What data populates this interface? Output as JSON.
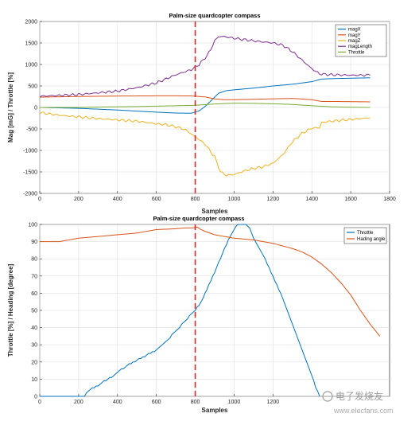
{
  "chart_data": [
    {
      "type": "line",
      "title": "Palm-size quardcopter compass",
      "xlabel": "Samples",
      "ylabel": "Mag [mG] / Throttle [%]",
      "xlim": [
        0,
        1800
      ],
      "ylim": [
        -2000,
        2000
      ],
      "xticks": [
        0,
        200,
        400,
        600,
        800,
        1000,
        1200,
        1400,
        1600,
        1800
      ],
      "yticks": [
        -2000,
        -1500,
        -1000,
        -500,
        0,
        500,
        1000,
        1500,
        2000
      ],
      "grid": true,
      "legend_position": "top-right",
      "vline": {
        "x": 800,
        "color": "#d62728",
        "style": "dashed"
      },
      "series": [
        {
          "name": "magX",
          "color": "#0072bd",
          "points": [
            [
              0,
              0
            ],
            [
              200,
              -20
            ],
            [
              400,
              -60
            ],
            [
              600,
              -110
            ],
            [
              700,
              -130
            ],
            [
              780,
              -135
            ],
            [
              820,
              -80
            ],
            [
              850,
              20
            ],
            [
              880,
              150
            ],
            [
              920,
              330
            ],
            [
              960,
              390
            ],
            [
              1000,
              410
            ],
            [
              1100,
              450
            ],
            [
              1200,
              500
            ],
            [
              1300,
              540
            ],
            [
              1400,
              600
            ],
            [
              1450,
              660
            ],
            [
              1500,
              670
            ],
            [
              1600,
              680
            ],
            [
              1700,
              690
            ]
          ]
        },
        {
          "name": "magY",
          "color": "#d95319",
          "points": [
            [
              0,
              240
            ],
            [
              200,
              255
            ],
            [
              400,
              265
            ],
            [
              600,
              270
            ],
            [
              700,
              270
            ],
            [
              780,
              268
            ],
            [
              850,
              245
            ],
            [
              900,
              200
            ],
            [
              950,
              180
            ],
            [
              1000,
              180
            ],
            [
              1100,
              190
            ],
            [
              1200,
              200
            ],
            [
              1300,
              210
            ],
            [
              1400,
              180
            ],
            [
              1450,
              140
            ],
            [
              1500,
              140
            ],
            [
              1600,
              135
            ],
            [
              1700,
              130
            ]
          ]
        },
        {
          "name": "magZ",
          "color": "#edb120",
          "points": [
            [
              0,
              -120
            ],
            [
              100,
              -180
            ],
            [
              200,
              -220
            ],
            [
              300,
              -260
            ],
            [
              400,
              -290
            ],
            [
              500,
              -320
            ],
            [
              600,
              -380
            ],
            [
              650,
              -400
            ],
            [
              700,
              -450
            ],
            [
              750,
              -520
            ],
            [
              800,
              -680
            ],
            [
              850,
              -850
            ],
            [
              900,
              -1150
            ],
            [
              930,
              -1500
            ],
            [
              960,
              -1580
            ],
            [
              1000,
              -1560
            ],
            [
              1050,
              -1480
            ],
            [
              1100,
              -1420
            ],
            [
              1150,
              -1380
            ],
            [
              1200,
              -1300
            ],
            [
              1250,
              -1100
            ],
            [
              1300,
              -800
            ],
            [
              1350,
              -600
            ],
            [
              1400,
              -480
            ],
            [
              1440,
              -470
            ],
            [
              1450,
              -350
            ],
            [
              1500,
              -320
            ],
            [
              1600,
              -280
            ],
            [
              1700,
              -240
            ]
          ]
        },
        {
          "name": "magLength",
          "color": "#7e2f8e",
          "points": [
            [
              0,
              260
            ],
            [
              100,
              280
            ],
            [
              200,
              300
            ],
            [
              300,
              340
            ],
            [
              400,
              380
            ],
            [
              500,
              460
            ],
            [
              600,
              570
            ],
            [
              700,
              760
            ],
            [
              780,
              880
            ],
            [
              820,
              1000
            ],
            [
              860,
              1200
            ],
            [
              880,
              1350
            ],
            [
              900,
              1550
            ],
            [
              920,
              1650
            ],
            [
              950,
              1650
            ],
            [
              1000,
              1610
            ],
            [
              1100,
              1550
            ],
            [
              1200,
              1500
            ],
            [
              1250,
              1450
            ],
            [
              1300,
              1300
            ],
            [
              1350,
              1100
            ],
            [
              1400,
              900
            ],
            [
              1440,
              780
            ],
            [
              1500,
              760
            ],
            [
              1600,
              750
            ],
            [
              1700,
              750
            ]
          ]
        },
        {
          "name": "Throttle",
          "color": "#77ac30",
          "points": [
            [
              0,
              0
            ],
            [
              200,
              0
            ],
            [
              300,
              10
            ],
            [
              400,
              15
            ],
            [
              500,
              20
            ],
            [
              600,
              30
            ],
            [
              700,
              40
            ],
            [
              800,
              50
            ],
            [
              900,
              80
            ],
            [
              1000,
              100
            ],
            [
              1100,
              95
            ],
            [
              1200,
              85
            ],
            [
              1300,
              70
            ],
            [
              1400,
              40
            ],
            [
              1500,
              15
            ],
            [
              1600,
              5
            ],
            [
              1700,
              0
            ]
          ]
        }
      ]
    },
    {
      "type": "line",
      "title": "Palm-size quardcopter compass",
      "xlabel": "Samples",
      "ylabel": "Throttle [%] / Heading [degree]",
      "xlim": [
        0,
        1800
      ],
      "ylim": [
        0,
        100
      ],
      "xticks": [
        0,
        200,
        400,
        600,
        800,
        1000,
        1200
      ],
      "yticks": [
        0,
        10,
        20,
        30,
        40,
        50,
        60,
        70,
        80,
        90,
        100
      ],
      "grid": true,
      "legend_position": "top-right",
      "vline": {
        "x": 800,
        "color": "#d62728",
        "style": "dashed"
      },
      "series": [
        {
          "name": "Throttle",
          "color": "#0072bd",
          "points": [
            [
              0,
              0
            ],
            [
              100,
              0
            ],
            [
              200,
              0
            ],
            [
              230,
              0
            ],
            [
              250,
              3
            ],
            [
              270,
              5
            ],
            [
              300,
              6
            ],
            [
              320,
              8
            ],
            [
              350,
              10
            ],
            [
              380,
              12
            ],
            [
              400,
              14
            ],
            [
              450,
              18
            ],
            [
              500,
              21
            ],
            [
              550,
              24
            ],
            [
              600,
              27
            ],
            [
              650,
              32
            ],
            [
              700,
              38
            ],
            [
              750,
              44
            ],
            [
              780,
              48
            ],
            [
              800,
              50
            ],
            [
              830,
              55
            ],
            [
              860,
              62
            ],
            [
              900,
              72
            ],
            [
              940,
              83
            ],
            [
              980,
              93
            ],
            [
              1000,
              97
            ],
            [
              1020,
              100
            ],
            [
              1060,
              100
            ],
            [
              1080,
              98
            ],
            [
              1100,
              92
            ],
            [
              1150,
              82
            ],
            [
              1200,
              70
            ],
            [
              1250,
              57
            ],
            [
              1300,
              42
            ],
            [
              1350,
              27
            ],
            [
              1400,
              12
            ],
            [
              1420,
              5
            ],
            [
              1440,
              0
            ]
          ]
        },
        {
          "name": "Hading angle",
          "color": "#d95319",
          "points": [
            [
              0,
              90
            ],
            [
              100,
              90
            ],
            [
              150,
              91
            ],
            [
              200,
              92
            ],
            [
              300,
              93
            ],
            [
              400,
              94
            ],
            [
              500,
              95
            ],
            [
              600,
              97
            ],
            [
              700,
              97.5
            ],
            [
              750,
              98
            ],
            [
              790,
              98
            ],
            [
              810,
              98.5
            ],
            [
              830,
              97
            ],
            [
              850,
              96
            ],
            [
              900,
              94
            ],
            [
              950,
              93
            ],
            [
              1000,
              92
            ],
            [
              1050,
              91.5
            ],
            [
              1100,
              91
            ],
            [
              1150,
              90
            ],
            [
              1200,
              89
            ],
            [
              1250,
              87.5
            ],
            [
              1300,
              86
            ],
            [
              1350,
              84
            ],
            [
              1400,
              81
            ],
            [
              1450,
              77
            ],
            [
              1500,
              72
            ],
            [
              1550,
              66
            ],
            [
              1600,
              59
            ],
            [
              1650,
              50
            ],
            [
              1700,
              42
            ],
            [
              1750,
              35
            ]
          ]
        }
      ]
    }
  ],
  "watermark": {
    "text": "电子发烧友",
    "sub": "www.elecfans.com"
  }
}
